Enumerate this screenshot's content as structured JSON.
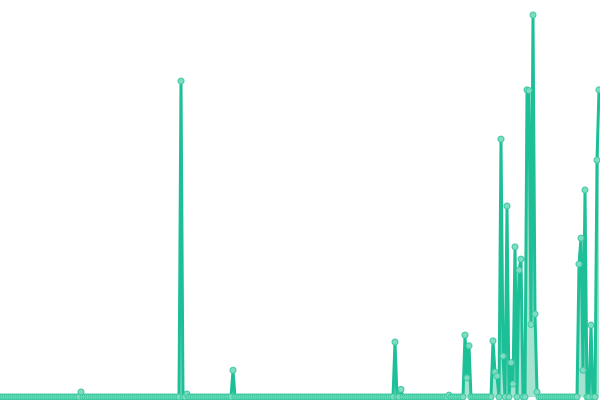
{
  "chart_data": {
    "type": "area",
    "title": "",
    "xlabel": "",
    "ylabel": "",
    "ylim": [
      0,
      100
    ],
    "grid": false,
    "markers": true,
    "colors": {
      "line": "#1dbf97",
      "fill": "#8fdcc6",
      "marker_fill": "#7fdcc2",
      "marker_stroke": "#3cc9a0"
    },
    "series": [
      {
        "values": [
          0,
          0,
          0,
          0,
          0,
          0,
          0,
          0,
          0,
          0,
          0,
          0,
          0,
          0,
          0,
          0,
          0,
          0,
          0,
          0,
          0,
          0,
          0,
          0,
          0,
          0,
          0,
          0,
          0,
          0,
          0,
          0,
          0,
          0,
          0,
          0,
          0,
          0,
          0,
          0,
          1.3,
          0,
          0,
          0,
          0,
          0,
          0,
          0,
          0,
          0,
          0,
          0,
          0,
          0,
          0,
          0,
          0,
          0,
          0,
          0,
          0,
          0,
          0,
          0,
          0,
          0,
          0,
          0,
          0,
          0,
          0,
          0,
          0,
          0,
          0,
          0,
          0,
          0,
          0,
          0,
          0,
          0,
          0,
          0,
          0,
          0,
          0,
          0,
          0,
          0,
          82.7,
          0,
          0,
          0.8,
          0,
          0,
          0,
          0,
          0,
          0,
          0,
          0,
          0,
          0,
          0,
          0,
          0,
          0,
          0,
          0,
          0,
          0,
          0,
          0,
          0,
          0,
          7,
          0,
          0,
          0,
          0,
          0,
          0,
          0,
          0,
          0,
          0,
          0,
          0,
          0,
          0,
          0,
          0,
          0,
          0,
          0,
          0,
          0,
          0,
          0,
          0,
          0,
          0,
          0,
          0,
          0,
          0,
          0,
          0,
          0,
          0,
          0,
          0,
          0,
          0,
          0,
          0,
          0,
          0,
          0,
          0,
          0,
          0,
          0,
          0,
          0,
          0,
          0,
          0,
          0,
          0,
          0,
          0,
          0,
          0,
          0,
          0,
          0,
          0,
          0,
          0,
          0,
          0,
          0,
          0,
          0,
          0,
          0,
          0,
          0,
          0,
          0,
          0,
          0,
          0,
          0,
          0,
          14.4,
          0,
          0,
          2,
          0,
          0,
          0,
          0,
          0,
          0,
          0,
          0,
          0,
          0,
          0,
          0,
          0,
          0,
          0,
          0,
          0,
          0,
          0,
          0,
          0,
          0,
          0,
          0.5,
          0,
          0,
          0,
          0,
          0,
          0,
          0,
          16.2,
          5,
          13.4,
          0,
          0,
          0,
          0,
          0,
          0,
          0,
          0,
          0,
          0,
          0,
          14.7,
          6.5,
          5.5,
          0,
          67.5,
          10.7,
          0,
          50,
          0,
          9,
          3.4,
          39.3,
          0,
          33.2,
          36.1,
          0,
          0,
          80.4,
          80.2,
          19,
          100,
          21.7,
          1.3,
          0,
          0,
          0,
          0,
          0,
          0,
          0,
          0,
          0,
          0,
          0,
          0,
          0,
          0,
          0,
          0,
          0,
          0,
          0,
          0,
          34.8,
          41.6,
          7,
          54.2,
          0,
          0,
          18.8,
          0,
          0,
          62,
          80.4
        ]
      }
    ]
  }
}
